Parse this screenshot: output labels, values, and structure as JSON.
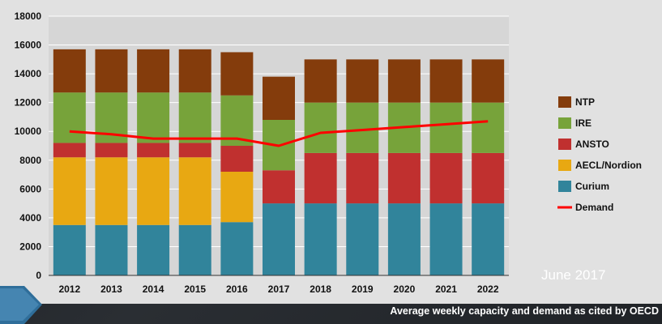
{
  "chart_data": {
    "type": "bar",
    "stacked": true,
    "categories": [
      "2012",
      "2013",
      "2014",
      "2015",
      "2016",
      "2017",
      "2018",
      "2019",
      "2020",
      "2021",
      "2022"
    ],
    "ylim": [
      0,
      18000
    ],
    "yticks": [
      0,
      2000,
      4000,
      6000,
      8000,
      10000,
      12000,
      14000,
      16000,
      18000
    ],
    "grid": true,
    "legend_position": "right",
    "series": [
      {
        "name": "Curium",
        "color": "#31849b",
        "values": [
          3500,
          3500,
          3500,
          3500,
          3700,
          5000,
          5000,
          5000,
          5000,
          5000,
          5000
        ]
      },
      {
        "name": "AECL/Nordion",
        "color": "#e8a812",
        "values": [
          4700,
          4700,
          4700,
          4700,
          3500,
          0,
          0,
          0,
          0,
          0,
          0
        ]
      },
      {
        "name": "ANSTO",
        "color": "#c0302f",
        "values": [
          1000,
          1000,
          1000,
          1000,
          1800,
          2300,
          3500,
          3500,
          3500,
          3500,
          3500
        ]
      },
      {
        "name": "IRE",
        "color": "#77a33a",
        "values": [
          3500,
          3500,
          3500,
          3500,
          3500,
          3500,
          3500,
          3500,
          3500,
          3500,
          3500
        ]
      },
      {
        "name": "NTP",
        "color": "#843c0c",
        "values": [
          3000,
          3000,
          3000,
          3000,
          3000,
          3000,
          3000,
          3000,
          3000,
          3000,
          3000
        ]
      }
    ],
    "line": {
      "name": "Demand",
      "color": "#ff0000",
      "values": [
        10000,
        9800,
        9500,
        9500,
        9500,
        9000,
        9900,
        10100,
        10300,
        10500,
        10700
      ]
    },
    "legend_order": [
      "NTP",
      "IRE",
      "ANSTO",
      "AECL/Nordion",
      "Curium",
      "Demand"
    ]
  },
  "annotations": {
    "date_note": "June 2017",
    "caption": "Average weekly capacity and demand as cited by OECD"
  },
  "colors": {
    "panel": "#e1e1e1",
    "plot": "#d6d6d6",
    "grid": "#ffffff",
    "background": "#25282c",
    "arrow": "#2f6e9a"
  }
}
